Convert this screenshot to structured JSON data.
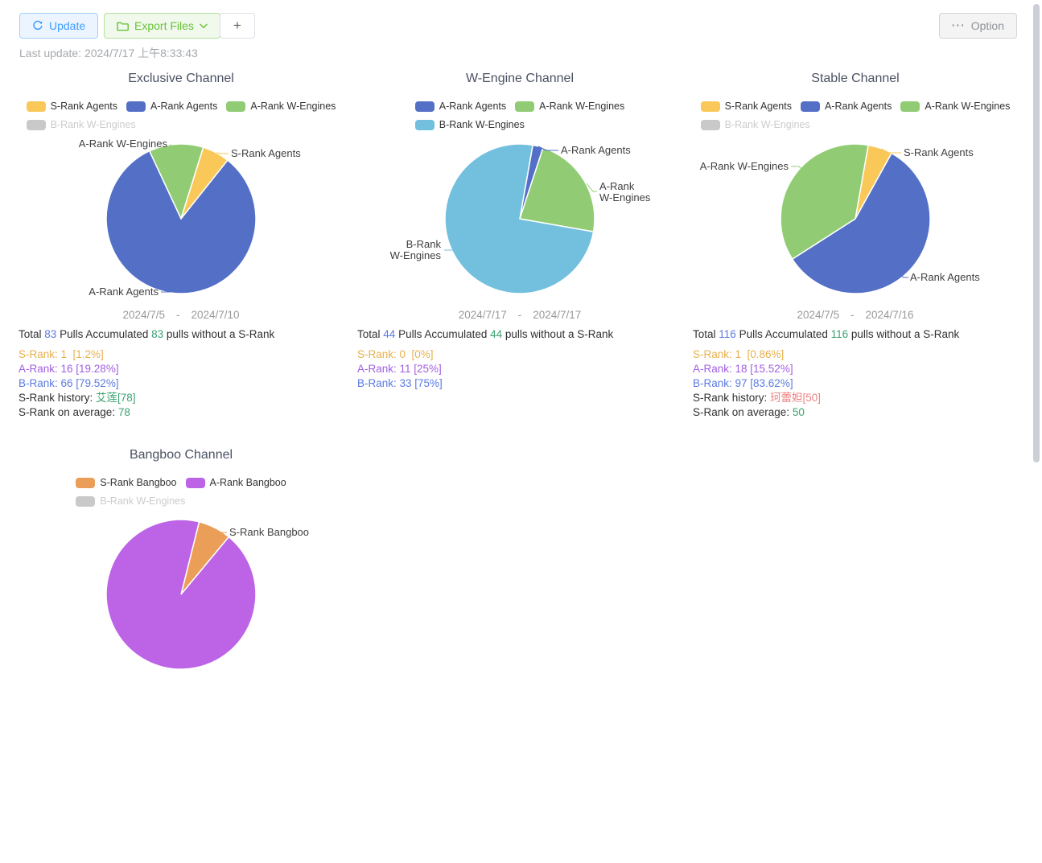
{
  "toolbar": {
    "update_label": "Update",
    "export_label": "Export Files",
    "add_label": "+",
    "option_label": "Option",
    "option_icon": "···",
    "last_update": "Last update: 2024/7/17 上午8:33:43"
  },
  "strings": {
    "total_prefix": "Total",
    "total_mid": "Pulls Accumulated",
    "total_suffix": "pulls without a S-Rank"
  },
  "colors": {
    "accent_blue": "#409eff",
    "accent_green": "#67c23a",
    "stat_number_blue": "#5b7be0",
    "stat_number_green": "#3ba272",
    "pie_yellow": "#fac858",
    "pie_blue": "#5470c6",
    "pie_green": "#91cc75",
    "pie_lightblue": "#73c0de",
    "pie_orange": "#eb9e57",
    "pie_purple": "#bd63e6",
    "disabled_gray": "#c9c9c9"
  },
  "chart_data": [
    {
      "id": "exclusive",
      "type": "pie",
      "title": "Exclusive Channel",
      "start_angle_deg": -25,
      "legend_rows": [
        [
          {
            "label": "S-Rank Agents",
            "color": "#fac858",
            "disabled": false
          },
          {
            "label": "A-Rank Agents",
            "color": "#5470c6",
            "disabled": false
          },
          {
            "label": "A-Rank W-Engines",
            "color": "#91cc75",
            "disabled": false
          }
        ],
        [
          {
            "label": "B-Rank W-Engines",
            "color": "#c9c9c9",
            "disabled": true
          }
        ]
      ],
      "slices": [
        {
          "label": "A-Rank W-Engines",
          "value": 2,
          "color": "#91cc75"
        },
        {
          "label": "S-Rank Agents",
          "value": 1,
          "color": "#fac858"
        },
        {
          "label": "A-Rank Agents",
          "value": 14,
          "color": "#5470c6"
        }
      ],
      "date_range": {
        "start": "2024/7/5",
        "separator": "-",
        "end": "2024/7/10"
      },
      "stats": {
        "total_pulls": 83,
        "accumulated": 83,
        "ranks": [
          {
            "text": "S-Rank: 1  [1.2%]",
            "color": "#e8b04e"
          },
          {
            "text": "A-Rank: 16 [19.28%]",
            "color": "#a15fe0"
          },
          {
            "text": "B-Rank: 66 [79.52%]",
            "color": "#5b7be0"
          }
        ],
        "history": {
          "label": "S-Rank history:",
          "value": "艾莲[78]",
          "color": "#3ba272"
        },
        "average": {
          "label": "S-Rank on average:",
          "value": "78",
          "color": "#3ba272"
        }
      }
    },
    {
      "id": "wengine",
      "type": "pie",
      "title": "W-Engine Channel",
      "start_angle_deg": 10,
      "legend_rows": [
        [
          {
            "label": "A-Rank Agents",
            "color": "#5470c6",
            "disabled": false
          },
          {
            "label": "A-Rank W-Engines",
            "color": "#91cc75",
            "disabled": false
          }
        ],
        [
          {
            "label": "B-Rank W-Engines",
            "color": "#73c0de",
            "disabled": false
          }
        ]
      ],
      "slices": [
        {
          "label": "A-Rank Agents",
          "value": 1,
          "color": "#5470c6"
        },
        {
          "label": "A-Rank W-Engines",
          "value": 10,
          "color": "#91cc75"
        },
        {
          "label": "B-Rank W-Engines",
          "value": 33,
          "color": "#73c0de"
        }
      ],
      "date_range": {
        "start": "2024/7/17",
        "separator": "-",
        "end": "2024/7/17"
      },
      "stats": {
        "total_pulls": 44,
        "accumulated": 44,
        "ranks": [
          {
            "text": "S-Rank: 0  [0%]",
            "color": "#e8b04e"
          },
          {
            "text": "A-Rank: 11 [25%]",
            "color": "#a15fe0"
          },
          {
            "text": "B-Rank: 33 [75%]",
            "color": "#5b7be0"
          }
        ],
        "history": null,
        "average": null
      }
    },
    {
      "id": "stable",
      "type": "pie",
      "title": "Stable Channel",
      "start_angle_deg": 10,
      "legend_rows": [
        [
          {
            "label": "S-Rank Agents",
            "color": "#fac858",
            "disabled": false
          },
          {
            "label": "A-Rank Agents",
            "color": "#5470c6",
            "disabled": false
          },
          {
            "label": "A-Rank W-Engines",
            "color": "#91cc75",
            "disabled": false
          }
        ],
        [
          {
            "label": "B-Rank W-Engines",
            "color": "#c9c9c9",
            "disabled": true
          }
        ]
      ],
      "slices": [
        {
          "label": "S-Rank Agents",
          "value": 1,
          "color": "#fac858"
        },
        {
          "label": "A-Rank Agents",
          "value": 11,
          "color": "#5470c6"
        },
        {
          "label": "A-Rank W-Engines",
          "value": 7,
          "color": "#91cc75"
        }
      ],
      "date_range": {
        "start": "2024/7/5",
        "separator": "-",
        "end": "2024/7/16"
      },
      "stats": {
        "total_pulls": 116,
        "accumulated": 116,
        "ranks": [
          {
            "text": "S-Rank: 1  [0.86%]",
            "color": "#e8b04e"
          },
          {
            "text": "A-Rank: 18 [15.52%]",
            "color": "#a15fe0"
          },
          {
            "text": "B-Rank: 97 [83.62%]",
            "color": "#5b7be0"
          }
        ],
        "history": {
          "label": "S-Rank history:",
          "value": "珂蕾妲[50]",
          "color": "#f08080"
        },
        "average": {
          "label": "S-Rank on average:",
          "value": "50",
          "color": "#3ba272"
        }
      }
    },
    {
      "id": "bangboo",
      "type": "pie",
      "title": "Bangboo Channel",
      "start_angle_deg": 14,
      "legend_rows": [
        [
          {
            "label": "S-Rank Bangboo",
            "color": "#eb9e57",
            "disabled": false
          },
          {
            "label": "A-Rank Bangboo",
            "color": "#bd63e6",
            "disabled": false
          }
        ],
        [
          {
            "label": "B-Rank W-Engines",
            "color": "#c9c9c9",
            "disabled": true
          }
        ]
      ],
      "slices": [
        {
          "label": "S-Rank Bangboo",
          "value": 1,
          "color": "#eb9e57"
        },
        {
          "label": "A-Rank Bangboo",
          "value": 13,
          "color": "#bd63e6"
        }
      ],
      "date_range": null,
      "stats": null
    }
  ]
}
